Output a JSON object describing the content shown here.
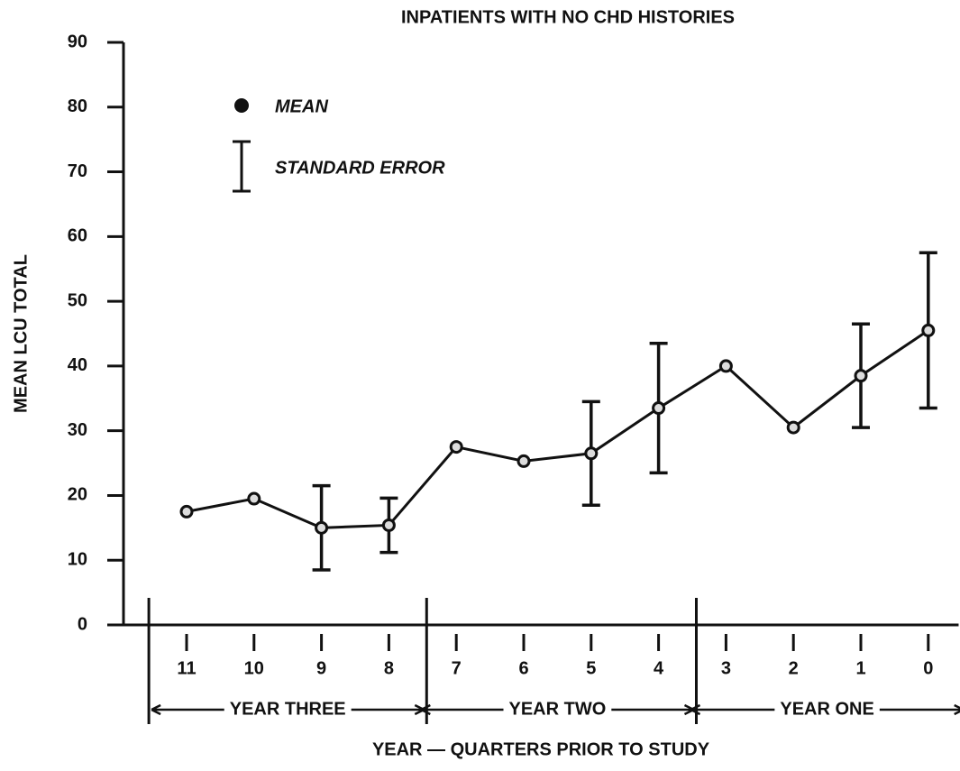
{
  "chart_data": {
    "type": "line",
    "title": "INPATIENTS WITH NO CHD HISTORIES",
    "y_label": "MEAN LCU TOTAL",
    "x_label": "YEAR — QUARTERS PRIOR TO STUDY",
    "categories": [
      "11",
      "10",
      "9",
      "8",
      "7",
      "6",
      "5",
      "4",
      "3",
      "2",
      "1",
      "0"
    ],
    "groups": [
      {
        "label": "YEAR THREE",
        "categories": [
          "11",
          "10",
          "9",
          "8"
        ]
      },
      {
        "label": "YEAR TWO",
        "categories": [
          "7",
          "6",
          "5",
          "4"
        ]
      },
      {
        "label": "YEAR ONE",
        "categories": [
          "3",
          "2",
          "1",
          "0"
        ]
      }
    ],
    "series": [
      {
        "name": "MEAN",
        "error_name": "STANDARD ERROR",
        "color": "#111111",
        "values": [
          17.5,
          19.5,
          15,
          15.4,
          27.5,
          25.3,
          26.5,
          33.5,
          40,
          30.5,
          38.5,
          45.5
        ],
        "errors": [
          null,
          null,
          6.5,
          4.2,
          null,
          null,
          8,
          10,
          null,
          null,
          8,
          12
        ]
      }
    ],
    "ylim": [
      0,
      90
    ],
    "yticks": [
      0,
      10,
      20,
      30,
      40,
      50,
      60,
      70,
      80,
      90
    ]
  }
}
